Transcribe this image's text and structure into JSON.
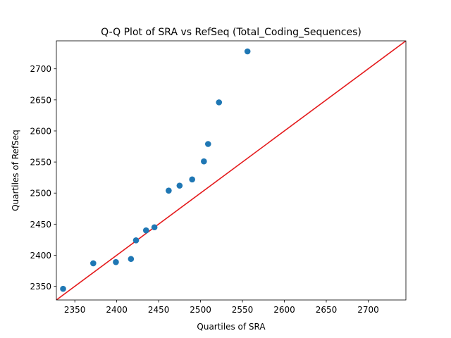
{
  "chart_data": {
    "type": "scatter",
    "title": "Q-Q Plot of SRA vs RefSeq (Total_Coding_Sequences)",
    "xlabel": "Quartiles of SRA",
    "ylabel": "Quartiles of RefSeq",
    "xlim": [
      2328,
      2745
    ],
    "ylim": [
      2328,
      2745
    ],
    "xticks": [
      2350,
      2400,
      2450,
      2500,
      2550,
      2600,
      2650,
      2700
    ],
    "yticks": [
      2350,
      2400,
      2450,
      2500,
      2550,
      2600,
      2650,
      2700
    ],
    "grid": false,
    "legend": "none",
    "reference_line": {
      "type": "y = x",
      "color": "#e41a1c"
    },
    "series": [
      {
        "color": "#1f77b4",
        "points": [
          {
            "x": 2336,
            "y": 2346
          },
          {
            "x": 2372,
            "y": 2387
          },
          {
            "x": 2399,
            "y": 2389
          },
          {
            "x": 2417,
            "y": 2394
          },
          {
            "x": 2423,
            "y": 2424
          },
          {
            "x": 2435,
            "y": 2440
          },
          {
            "x": 2445,
            "y": 2445
          },
          {
            "x": 2462,
            "y": 2504
          },
          {
            "x": 2475,
            "y": 2512
          },
          {
            "x": 2490,
            "y": 2522
          },
          {
            "x": 2504,
            "y": 2551
          },
          {
            "x": 2509,
            "y": 2579
          },
          {
            "x": 2522,
            "y": 2646
          },
          {
            "x": 2556,
            "y": 2728
          }
        ]
      }
    ]
  }
}
